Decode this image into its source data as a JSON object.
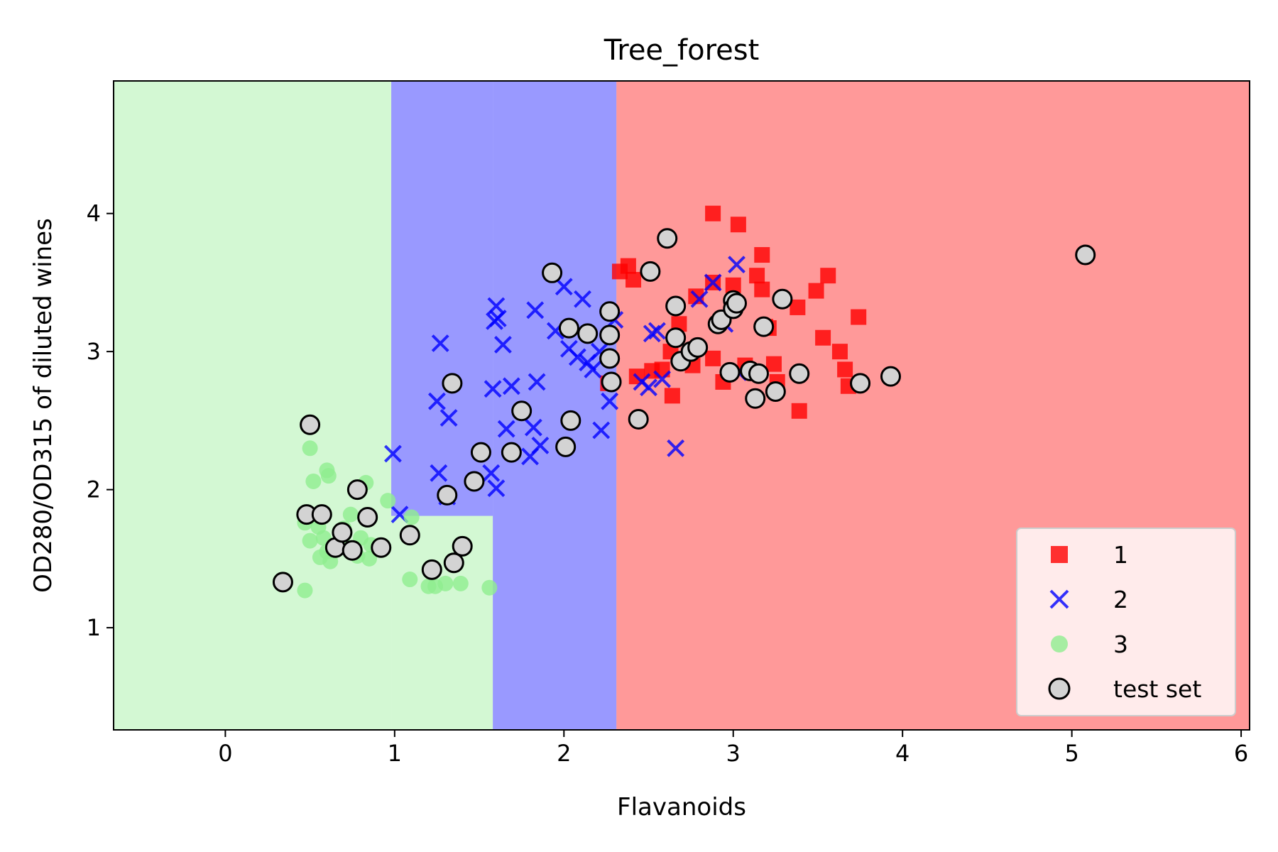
{
  "chart_data": {
    "type": "scatter",
    "title": "Tree_forest",
    "xlabel": "Flavanoids",
    "ylabel": "OD280/OD315 of diluted wines",
    "xlim": [
      -0.66,
      6.05
    ],
    "ylim": [
      0.26,
      4.96
    ],
    "xticks": [
      0,
      1,
      2,
      3,
      4,
      5,
      6
    ],
    "yticks": [
      1,
      2,
      3,
      4
    ],
    "grid": false,
    "legend_position": "lower-right",
    "decision_regions": [
      {
        "class": "3",
        "color": "#90ee90",
        "x": [
          -0.66,
          0.98
        ],
        "y": [
          0.26,
          4.96
        ]
      },
      {
        "class": "3",
        "color": "#90ee90",
        "x": [
          0.98,
          1.58
        ],
        "y": [
          0.26,
          1.81
        ]
      },
      {
        "class": "2",
        "color": "#0000ff",
        "x": [
          0.98,
          1.58
        ],
        "y": [
          1.81,
          4.96
        ]
      },
      {
        "class": "2",
        "color": "#0000ff",
        "x": [
          1.58,
          2.31
        ],
        "y": [
          0.26,
          4.96
        ]
      },
      {
        "class": "1",
        "color": "#ff0000",
        "x": [
          2.31,
          6.05
        ],
        "y": [
          0.26,
          4.96
        ]
      }
    ],
    "series": [
      {
        "name": "1",
        "marker": "square",
        "color": "#ff0000",
        "points": [
          [
            2.88,
            4.0
          ],
          [
            3.03,
            3.92
          ],
          [
            2.88,
            3.5
          ],
          [
            3.17,
            3.7
          ],
          [
            3.0,
            3.48
          ],
          [
            3.14,
            3.55
          ],
          [
            3.56,
            3.55
          ],
          [
            3.49,
            3.44
          ],
          [
            3.17,
            3.45
          ],
          [
            2.33,
            3.58
          ],
          [
            2.38,
            3.62
          ],
          [
            2.41,
            3.52
          ],
          [
            2.78,
            3.4
          ],
          [
            3.38,
            3.32
          ],
          [
            2.68,
            3.2
          ],
          [
            3.19,
            3.18
          ],
          [
            3.21,
            3.17
          ],
          [
            3.74,
            3.25
          ],
          [
            2.63,
            3.0
          ],
          [
            3.53,
            3.1
          ],
          [
            3.63,
            3.0
          ],
          [
            3.66,
            2.87
          ],
          [
            3.68,
            2.75
          ],
          [
            3.39,
            2.57
          ],
          [
            3.24,
            2.91
          ],
          [
            2.76,
            2.9
          ],
          [
            2.58,
            2.87
          ],
          [
            2.64,
            2.68
          ],
          [
            2.52,
            2.86
          ],
          [
            2.94,
            2.78
          ],
          [
            2.43,
            2.82
          ],
          [
            2.26,
            2.77
          ],
          [
            2.88,
            2.95
          ],
          [
            3.07,
            2.9
          ],
          [
            3.26,
            2.78
          ]
        ]
      },
      {
        "name": "2",
        "marker": "x",
        "color": "#0000ff",
        "points": [
          [
            0.99,
            2.26
          ],
          [
            1.03,
            1.82
          ],
          [
            1.27,
            3.06
          ],
          [
            1.25,
            2.64
          ],
          [
            1.32,
            2.52
          ],
          [
            1.26,
            2.12
          ],
          [
            1.31,
            1.95
          ],
          [
            1.6,
            3.33
          ],
          [
            1.59,
            3.22
          ],
          [
            1.64,
            3.05
          ],
          [
            1.61,
            3.24
          ],
          [
            1.58,
            2.73
          ],
          [
            1.69,
            2.75
          ],
          [
            1.66,
            2.44
          ],
          [
            1.57,
            2.12
          ],
          [
            1.6,
            2.01
          ],
          [
            1.84,
            2.78
          ],
          [
            1.82,
            2.45
          ],
          [
            1.86,
            2.32
          ],
          [
            1.8,
            2.24
          ],
          [
            1.83,
            3.3
          ],
          [
            1.95,
            3.15
          ],
          [
            2.0,
            3.47
          ],
          [
            2.11,
            3.38
          ],
          [
            2.03,
            3.02
          ],
          [
            2.08,
            2.96
          ],
          [
            2.14,
            2.92
          ],
          [
            2.17,
            2.87
          ],
          [
            2.21,
            3.0
          ],
          [
            2.22,
            2.43
          ],
          [
            2.27,
            2.64
          ],
          [
            2.3,
            3.23
          ],
          [
            2.46,
            2.78
          ],
          [
            2.5,
            2.74
          ],
          [
            2.52,
            3.13
          ],
          [
            2.55,
            3.15
          ],
          [
            2.58,
            2.8
          ],
          [
            2.66,
            2.3
          ],
          [
            2.8,
            3.38
          ],
          [
            2.88,
            3.5
          ],
          [
            2.95,
            3.2
          ],
          [
            3.02,
            3.63
          ],
          [
            3.03,
            2.85
          ]
        ]
      },
      {
        "name": "3",
        "marker": "circle",
        "color": "#90ee90",
        "points": [
          [
            0.5,
            2.3
          ],
          [
            0.52,
            2.06
          ],
          [
            0.6,
            2.14
          ],
          [
            0.61,
            2.1
          ],
          [
            0.47,
            1.76
          ],
          [
            0.55,
            1.73
          ],
          [
            0.58,
            1.65
          ],
          [
            0.6,
            1.55
          ],
          [
            0.62,
            1.48
          ],
          [
            0.65,
            1.58
          ],
          [
            0.7,
            1.6
          ],
          [
            0.74,
            1.82
          ],
          [
            0.7,
            1.72
          ],
          [
            0.76,
            1.55
          ],
          [
            0.8,
            1.65
          ],
          [
            0.83,
            2.05
          ],
          [
            0.86,
            1.6
          ],
          [
            0.85,
            1.5
          ],
          [
            0.96,
            1.92
          ],
          [
            0.5,
            1.63
          ],
          [
            0.56,
            1.51
          ],
          [
            0.47,
            1.27
          ],
          [
            1.1,
            1.8
          ],
          [
            1.09,
            1.35
          ],
          [
            1.2,
            1.3
          ],
          [
            1.24,
            1.3
          ],
          [
            1.3,
            1.32
          ],
          [
            1.39,
            1.32
          ],
          [
            1.56,
            1.29
          ],
          [
            0.78,
            1.52
          ]
        ]
      },
      {
        "name": "test set",
        "marker": "circle-outline",
        "color": "#d3d3d3",
        "points": [
          [
            0.34,
            1.33
          ],
          [
            0.5,
            2.47
          ],
          [
            0.48,
            1.82
          ],
          [
            0.57,
            1.82
          ],
          [
            0.65,
            1.58
          ],
          [
            0.69,
            1.69
          ],
          [
            0.75,
            1.56
          ],
          [
            0.78,
            2.0
          ],
          [
            0.84,
            1.8
          ],
          [
            0.92,
            1.58
          ],
          [
            1.09,
            1.67
          ],
          [
            1.22,
            1.42
          ],
          [
            1.31,
            1.96
          ],
          [
            1.35,
            1.47
          ],
          [
            1.4,
            1.59
          ],
          [
            1.34,
            2.77
          ],
          [
            1.47,
            2.06
          ],
          [
            1.51,
            2.27
          ],
          [
            1.69,
            2.27
          ],
          [
            1.75,
            2.57
          ],
          [
            1.93,
            3.57
          ],
          [
            2.01,
            2.31
          ],
          [
            2.03,
            3.17
          ],
          [
            2.04,
            2.5
          ],
          [
            2.14,
            3.13
          ],
          [
            2.27,
            3.29
          ],
          [
            2.27,
            3.12
          ],
          [
            2.27,
            2.95
          ],
          [
            2.28,
            2.78
          ],
          [
            2.44,
            2.51
          ],
          [
            2.51,
            3.58
          ],
          [
            2.61,
            3.82
          ],
          [
            2.66,
            3.33
          ],
          [
            2.66,
            3.1
          ],
          [
            2.69,
            2.93
          ],
          [
            2.75,
            3.0
          ],
          [
            2.79,
            3.03
          ],
          [
            2.91,
            3.2
          ],
          [
            2.93,
            3.23
          ],
          [
            2.98,
            2.85
          ],
          [
            3.0,
            3.37
          ],
          [
            3.0,
            3.31
          ],
          [
            3.02,
            3.35
          ],
          [
            3.1,
            2.86
          ],
          [
            3.13,
            2.66
          ],
          [
            3.15,
            2.84
          ],
          [
            3.18,
            3.18
          ],
          [
            3.25,
            2.71
          ],
          [
            3.29,
            3.38
          ],
          [
            3.39,
            2.84
          ],
          [
            3.75,
            2.77
          ],
          [
            3.93,
            2.82
          ],
          [
            5.08,
            3.7
          ]
        ]
      }
    ],
    "legend": [
      "1",
      "2",
      "3",
      "test set"
    ]
  }
}
